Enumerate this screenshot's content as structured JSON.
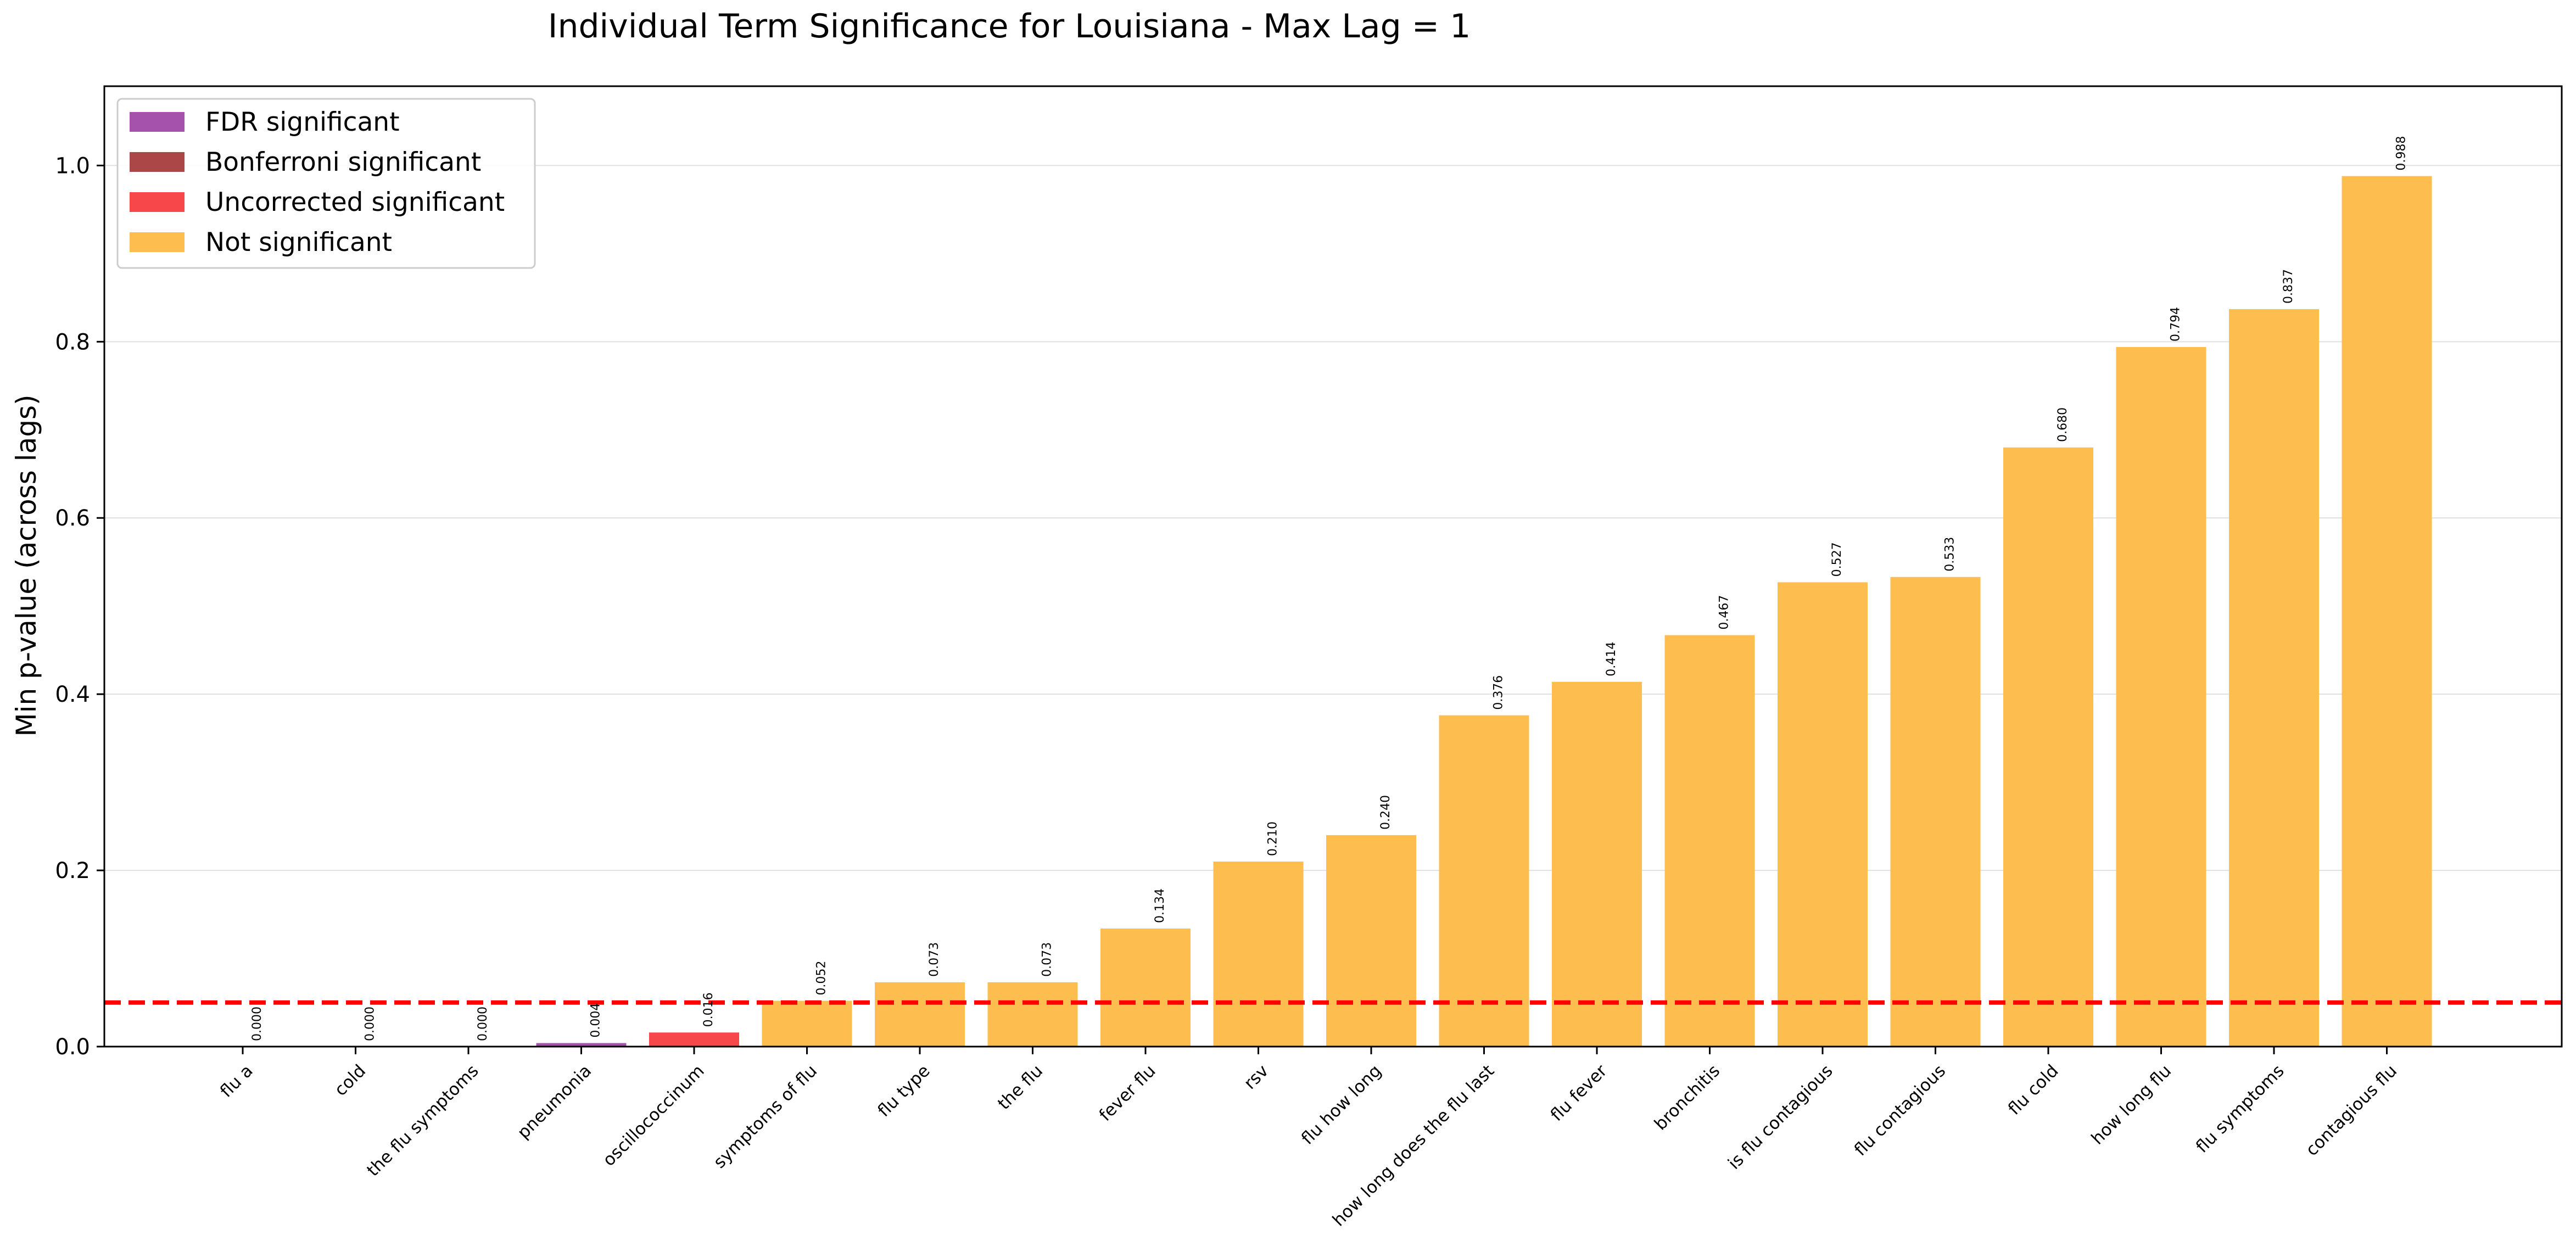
{
  "chart_data": {
    "type": "bar",
    "title": "Individual Term Significance for Louisiana - Max Lag = 1",
    "xlabel": "",
    "ylabel": "Min p-value (across lags)",
    "ylim": [
      0,
      1.09
    ],
    "yticks": [
      "0.0",
      "0.2",
      "0.4",
      "0.6",
      "0.8",
      "1.0"
    ],
    "grid": "horizontal",
    "legend_position": "top-left",
    "categories": [
      "flu a",
      "cold",
      "the flu symptoms",
      "pneumonia",
      "oscillococcinum",
      "symptoms of flu",
      "flu type",
      "the flu",
      "fever flu",
      "rsv",
      "flu how long",
      "how long does the flu last",
      "flu fever",
      "bronchitis",
      "is flu contagious",
      "flu contagious",
      "flu cold",
      "how long flu",
      "flu symptoms",
      "contagious flu"
    ],
    "values": [
      0.0,
      0.0,
      0.0,
      0.004,
      0.016,
      0.052,
      0.073,
      0.073,
      0.134,
      0.21,
      0.24,
      0.376,
      0.414,
      0.467,
      0.527,
      0.533,
      0.68,
      0.794,
      0.837,
      0.988
    ],
    "value_labels": [
      "0.000",
      "0.000",
      "0.000",
      "0.004",
      "0.016",
      "0.052",
      "0.073",
      "0.073",
      "0.134",
      "0.210",
      "0.240",
      "0.376",
      "0.414",
      "0.467",
      "0.527",
      "0.533",
      "0.680",
      "0.794",
      "0.837",
      "0.988"
    ],
    "significance": [
      "fdr",
      "fdr",
      "fdr",
      "fdr",
      "uncorrected",
      "not",
      "not",
      "not",
      "not",
      "not",
      "not",
      "not",
      "not",
      "not",
      "not",
      "not",
      "not",
      "not",
      "not",
      "not"
    ],
    "threshold": 0.05,
    "threshold_color": "#ff0000",
    "legend": [
      {
        "key": "fdr",
        "label": "FDR significant",
        "color": "#a552ad"
      },
      {
        "key": "bonferroni",
        "label": "Bonferroni significant",
        "color": "#ab4747"
      },
      {
        "key": "uncorrected",
        "label": "Uncorrected significant",
        "color": "#f7474a"
      },
      {
        "key": "not",
        "label": "Not significant",
        "color": "#fdbe4f"
      }
    ]
  }
}
